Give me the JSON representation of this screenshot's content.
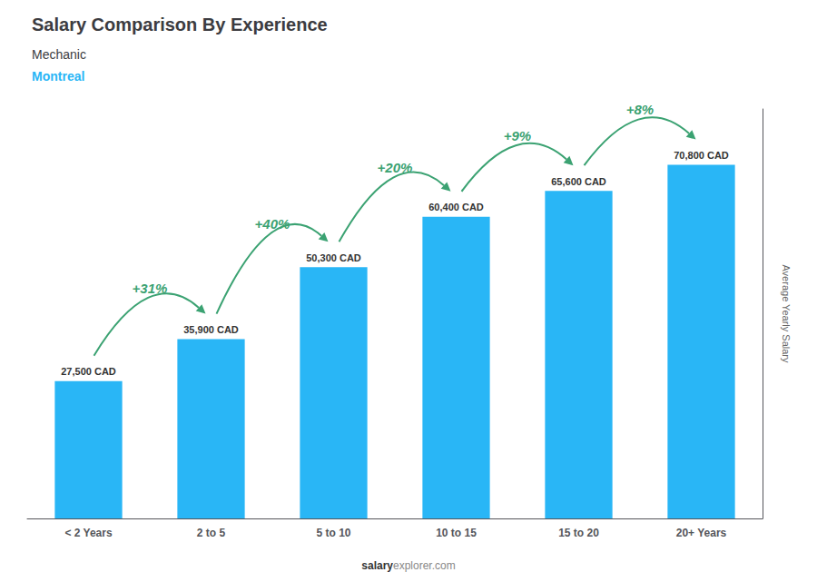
{
  "chart_data": {
    "type": "bar",
    "title": "Salary Comparison By Experience",
    "subtitle": [
      "Mechanic",
      "Montreal"
    ],
    "ylabel": "Average Yearly Salary",
    "categories": [
      "< 2 Years",
      "2 to 5",
      "5 to 10",
      "10 to 15",
      "15 to 20",
      "20+ Years"
    ],
    "values": [
      27500,
      35900,
      50300,
      60400,
      65600,
      70800
    ],
    "value_labels": [
      "27,500 CAD",
      "35,900 CAD",
      "50,300 CAD",
      "60,400 CAD",
      "65,600 CAD",
      "70,800 CAD"
    ],
    "data_labels": true,
    "color": "#29b6f6",
    "ylim": [
      0,
      82000
    ],
    "tick_labels": "x",
    "grid": false,
    "changes": [
      31,
      40,
      20,
      9,
      8
    ],
    "change_labels": [
      "+31%",
      "+40%",
      "+20%",
      "+9%",
      "+8%"
    ],
    "footer": [
      "salary",
      "explorer.com"
    ]
  }
}
